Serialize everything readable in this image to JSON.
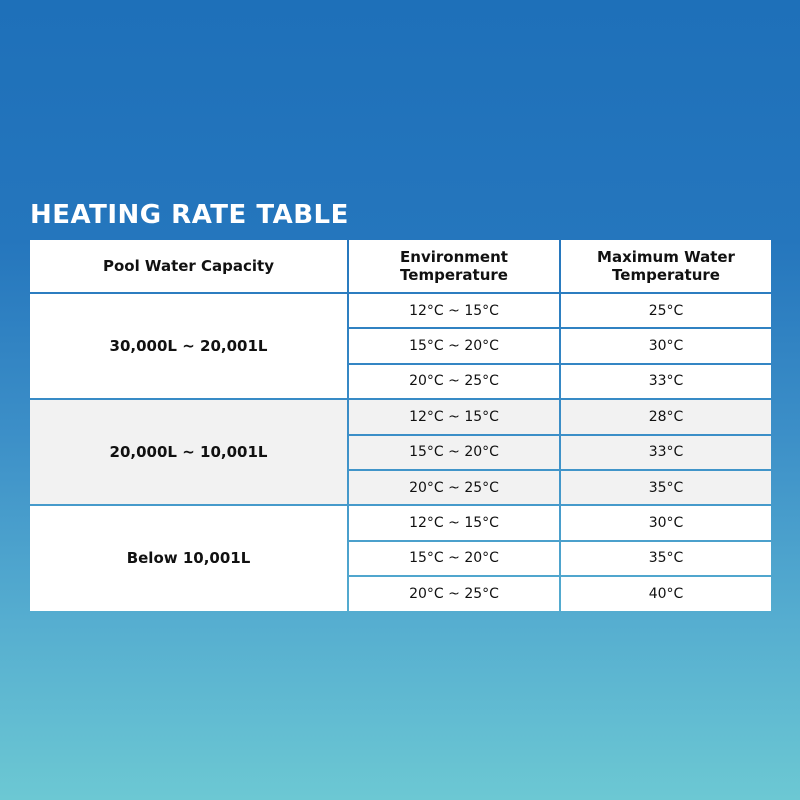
{
  "title": "HEATING RATE TABLE",
  "headers": {
    "capacity": "Pool Water Capacity",
    "env_line1": "Environment",
    "env_line2": "Temperature",
    "max_line1": "Maximum Water",
    "max_line2": "Temperature"
  },
  "groups": [
    {
      "capacity": "30,000L ~ 20,001L",
      "rows": [
        {
          "env": "12°C ~ 15°C",
          "max": "25°C"
        },
        {
          "env": "15°C ~ 20°C",
          "max": "30°C"
        },
        {
          "env": "20°C ~ 25°C",
          "max": "33°C"
        }
      ]
    },
    {
      "capacity": "20,000L ~ 10,001L",
      "rows": [
        {
          "env": "12°C ~ 15°C",
          "max": "28°C"
        },
        {
          "env": "15°C ~ 20°C",
          "max": "33°C"
        },
        {
          "env": "20°C ~ 25°C",
          "max": "35°C"
        }
      ]
    },
    {
      "capacity": "Below 10,001L",
      "rows": [
        {
          "env": "12°C ~ 15°C",
          "max": "30°C"
        },
        {
          "env": "15°C ~ 20°C",
          "max": "35°C"
        },
        {
          "env": "20°C ~ 25°C",
          "max": "40°C"
        }
      ]
    }
  ]
}
